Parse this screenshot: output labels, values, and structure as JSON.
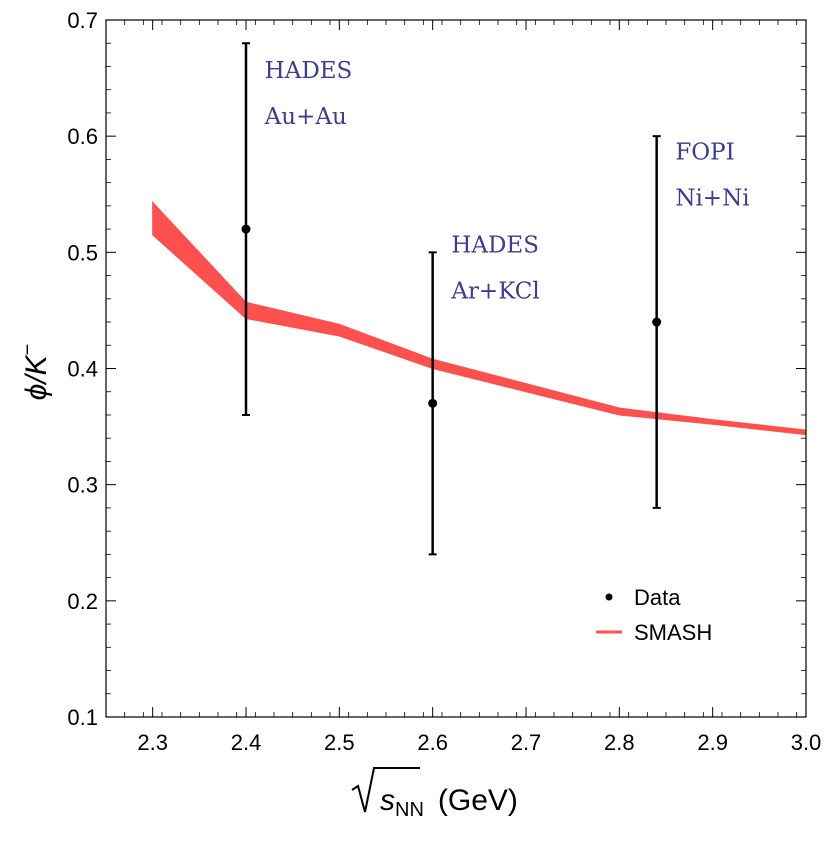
{
  "chart_data": {
    "type": "scatter",
    "x_label": "(GeV)",
    "x_label_symbol": "s",
    "x_label_sub": "NN",
    "y_label": "ϕ/K",
    "y_label_sup": "−",
    "xlim": [
      2.25,
      3.0
    ],
    "ylim": [
      0.1,
      0.7
    ],
    "x_ticks": [
      "2.3",
      "2.4",
      "2.5",
      "2.6",
      "2.7",
      "2.8",
      "2.9",
      "3.0"
    ],
    "y_ticks": [
      "0.1",
      "0.2",
      "0.3",
      "0.4",
      "0.5",
      "0.6",
      "0.7"
    ],
    "x_tick_values": [
      2.3,
      2.4,
      2.5,
      2.6,
      2.7,
      2.8,
      2.9,
      3.0
    ],
    "y_tick_values": [
      0.1,
      0.2,
      0.3,
      0.4,
      0.5,
      0.6,
      0.7
    ],
    "series": [
      {
        "name": "Data",
        "kind": "points",
        "color": "#000000",
        "points": [
          {
            "x": 2.4,
            "y": 0.52,
            "err_low": 0.36,
            "err_high": 0.68
          },
          {
            "x": 2.6,
            "y": 0.37,
            "err_low": 0.24,
            "err_high": 0.5
          },
          {
            "x": 2.84,
            "y": 0.44,
            "err_low": 0.28,
            "err_high": 0.6
          }
        ]
      },
      {
        "name": "SMASH",
        "kind": "band",
        "color": "#ff5050",
        "x": [
          2.3,
          2.4,
          2.5,
          2.6,
          2.7,
          2.8,
          2.9,
          3.0
        ],
        "lower": [
          0.515,
          0.443,
          0.428,
          0.4,
          0.38,
          0.36,
          0.352,
          0.343
        ],
        "upper": [
          0.543,
          0.457,
          0.438,
          0.408,
          0.387,
          0.366,
          0.356,
          0.347
        ]
      }
    ],
    "annotations": [
      {
        "lines": [
          "HADES",
          "Au+Au"
        ],
        "x": 2.42,
        "y": 0.65
      },
      {
        "lines": [
          "HADES",
          "Ar+KCl"
        ],
        "x": 2.62,
        "y": 0.5
      },
      {
        "lines": [
          "FOPI",
          "Ni+Ni"
        ],
        "x": 2.86,
        "y": 0.58
      }
    ],
    "legend": {
      "position": "bottom-right",
      "entries": [
        {
          "label": "Data",
          "marker": "point"
        },
        {
          "label": "SMASH",
          "marker": "line"
        }
      ]
    },
    "grid": false
  }
}
